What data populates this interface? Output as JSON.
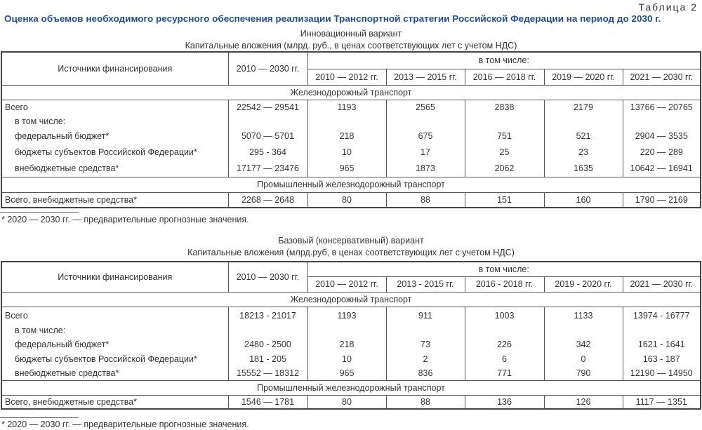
{
  "table_number": "Таблица 2",
  "title": "Оценка объемов необходимого ресурсного обеспечения реализации Транспортной стратегии Российской Федерации на период до 2030 г.",
  "tables": [
    {
      "variant": "Инновационный вариант",
      "units": "Капитальные вложения (млрд. руб., в ценах соответствующих лет с учетом НДС)",
      "header": {
        "source": "Источники финансирования",
        "total_period": "2010 — 2030 гг.",
        "including": "в том числе:",
        "periods": [
          "2010 — 2012 гг.",
          "2013 — 2015 гг.",
          "2016 — 2018 гг.",
          "2019 — 2020 гг.",
          "2021 — 2030 гг."
        ]
      },
      "section1": "Железнодорожный транспорт",
      "rows": [
        {
          "label": "Всего",
          "values": [
            "22542 — 29541",
            "1193",
            "2565",
            "2838",
            "2179",
            "13766 — 20765"
          ]
        },
        {
          "label": "в том числе:",
          "values": [
            "",
            "",
            "",
            "",
            "",
            ""
          ]
        },
        {
          "label": "федеральный бюджет*",
          "values": [
            "5070 — 5701",
            "218",
            "675",
            "751",
            "521",
            "2904 — 3535"
          ]
        },
        {
          "label": "бюджеты субъектов Российской Федерации*",
          "values": [
            "295 - 364",
            "10",
            "17",
            "25",
            "23",
            "220 — 289"
          ]
        },
        {
          "label": "внебюджетные средства*",
          "values": [
            "17177 — 23476",
            "965",
            "1873",
            "2062",
            "1635",
            "10642 — 16941"
          ]
        }
      ],
      "section2": "Промышленный железнодорожный транспорт",
      "industrial_row": {
        "label": "Всего, внебюджетные средства*",
        "values": [
          "2268 — 2648",
          "80",
          "88",
          "151",
          "160",
          "1790 — 2169"
        ]
      },
      "footnote": "* 2020 — 2030 гг. — предварительные прогнозные значения."
    },
    {
      "variant": "Базовый (консервативный) вариант",
      "units": "Капитальные вложения (млрд.руб, в ценах соответствующих лет с учетом НДС)",
      "header": {
        "source": "Источники финансирования",
        "total_period": "2010 — 2030 гг.",
        "including": "в том числе:",
        "periods": [
          "2010 — 2012 гг.",
          "2013 - 2015 гг.",
          "2016 - 2018 гг.",
          "2019 - 2020 гг.",
          "2021 — 2030 гг."
        ]
      },
      "section1": "Железнодорожный транспорт",
      "rows": [
        {
          "label": "Всего",
          "values": [
            "18213 - 21017",
            "1193",
            "911",
            "1003",
            "1133",
            "13974 - 16777"
          ]
        },
        {
          "label": "в том числе:",
          "values": [
            "",
            "",
            "",
            "",
            "",
            ""
          ]
        },
        {
          "label": "федеральный бюджет*",
          "values": [
            "2480 - 2500",
            "218",
            "73",
            "226",
            "342",
            "1621 - 1641"
          ]
        },
        {
          "label": "бюджеты субъектов Российской Федерации*",
          "values": [
            "181 - 205",
            "10",
            "2",
            "6",
            "0",
            "163 - 187"
          ]
        },
        {
          "label": "внебюджетные средства*",
          "values": [
            "15552 — 18312",
            "965",
            "836",
            "771",
            "790",
            "12190 — 14950"
          ]
        }
      ],
      "section2": "Промышленный железнодорожный транспорт",
      "industrial_row": {
        "label": "Всего, внебюджетные средства*",
        "values": [
          "1546 — 1781",
          "80",
          "88",
          "136",
          "126",
          "1117 — 1351"
        ]
      },
      "footnote": "* 2020 — 2030 гг. — предварительные прогнозные значения."
    }
  ]
}
